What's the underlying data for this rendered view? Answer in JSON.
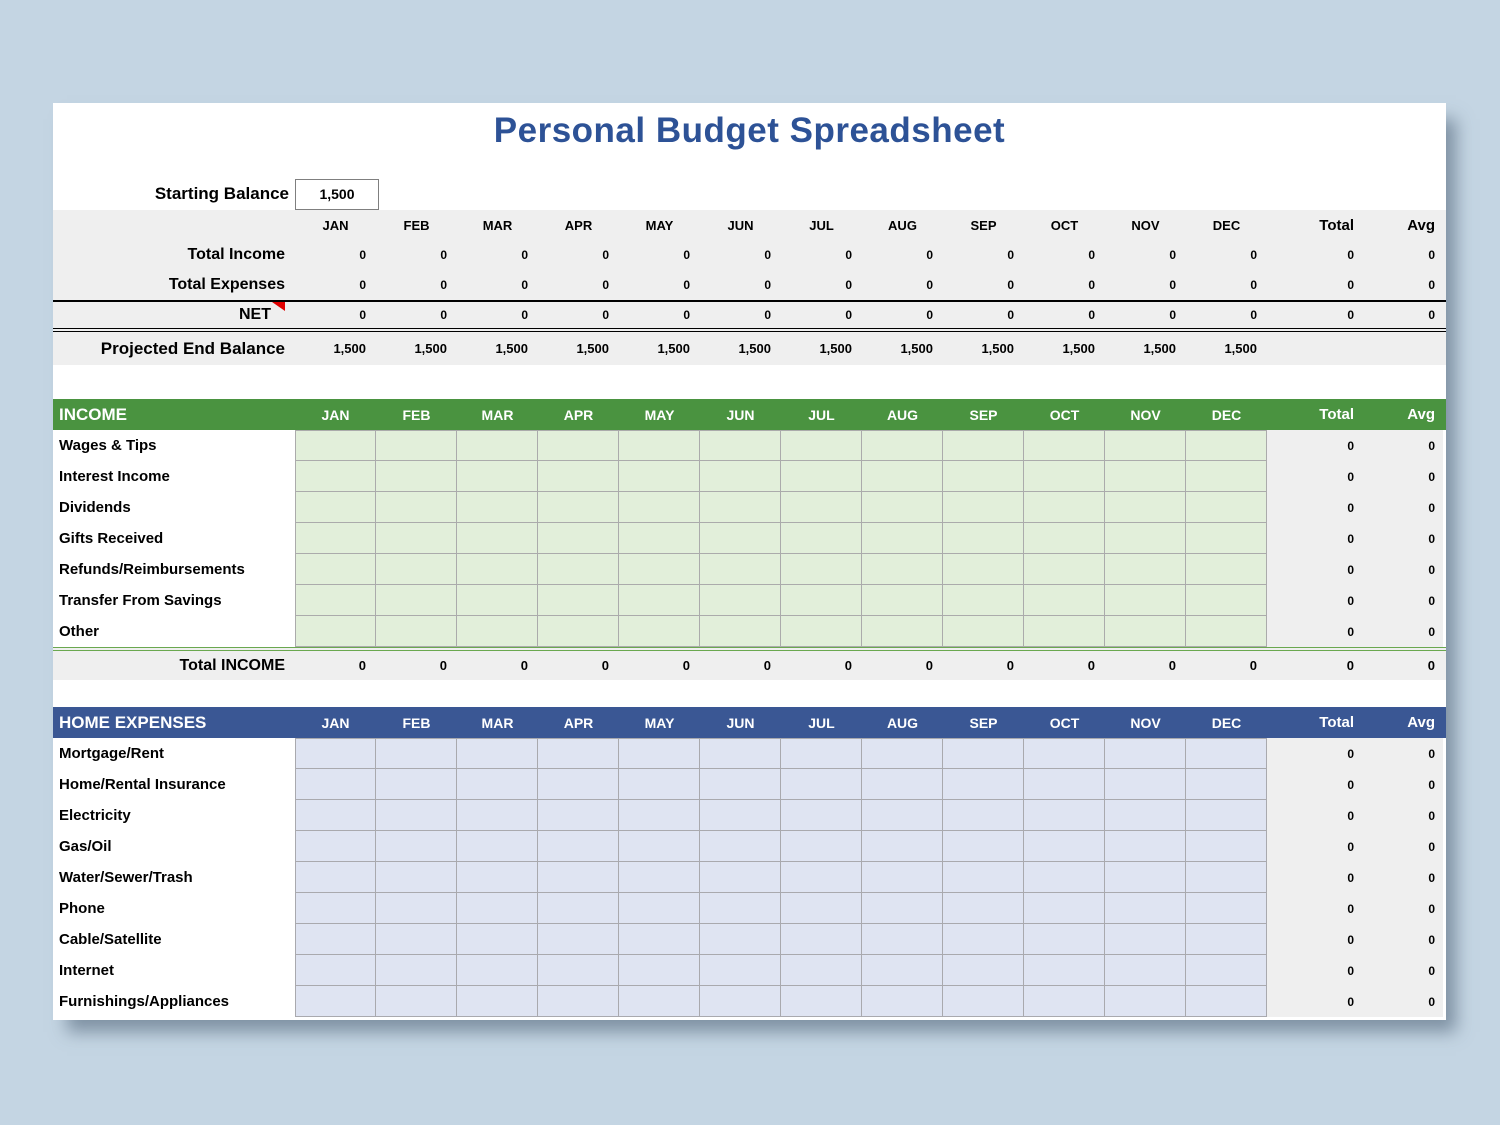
{
  "title": "Personal Budget Spreadsheet",
  "starting_balance": {
    "label": "Starting Balance",
    "value": "1,500"
  },
  "months": [
    "JAN",
    "FEB",
    "MAR",
    "APR",
    "MAY",
    "JUN",
    "JUL",
    "AUG",
    "SEP",
    "OCT",
    "NOV",
    "DEC"
  ],
  "total_label": "Total",
  "avg_label": "Avg",
  "summary": {
    "rows": [
      {
        "label": "Total Income",
        "values": [
          "0",
          "0",
          "0",
          "0",
          "0",
          "0",
          "0",
          "0",
          "0",
          "0",
          "0",
          "0"
        ],
        "total": "0",
        "avg": "0"
      },
      {
        "label": "Total Expenses",
        "values": [
          "0",
          "0",
          "0",
          "0",
          "0",
          "0",
          "0",
          "0",
          "0",
          "0",
          "0",
          "0"
        ],
        "total": "0",
        "avg": "0"
      },
      {
        "label": "NET",
        "values": [
          "0",
          "0",
          "0",
          "0",
          "0",
          "0",
          "0",
          "0",
          "0",
          "0",
          "0",
          "0"
        ],
        "total": "0",
        "avg": "0"
      }
    ],
    "projected": {
      "label": "Projected End Balance",
      "values": [
        "1,500",
        "1,500",
        "1,500",
        "1,500",
        "1,500",
        "1,500",
        "1,500",
        "1,500",
        "1,500",
        "1,500",
        "1,500",
        "1,500"
      ],
      "total": "",
      "avg": ""
    }
  },
  "income": {
    "header": "INCOME",
    "rows": [
      {
        "label": "Wages & Tips",
        "total": "0",
        "avg": "0"
      },
      {
        "label": "Interest Income",
        "total": "0",
        "avg": "0"
      },
      {
        "label": "Dividends",
        "total": "0",
        "avg": "0"
      },
      {
        "label": "Gifts Received",
        "total": "0",
        "avg": "0"
      },
      {
        "label": "Refunds/Reimbursements",
        "total": "0",
        "avg": "0"
      },
      {
        "label": "Transfer From Savings",
        "total": "0",
        "avg": "0"
      },
      {
        "label": "Other",
        "total": "0",
        "avg": "0"
      }
    ],
    "total_row": {
      "label": "Total INCOME",
      "values": [
        "0",
        "0",
        "0",
        "0",
        "0",
        "0",
        "0",
        "0",
        "0",
        "0",
        "0",
        "0"
      ],
      "total": "0",
      "avg": "0"
    }
  },
  "expenses": {
    "header": "HOME EXPENSES",
    "rows": [
      {
        "label": "Mortgage/Rent",
        "total": "0",
        "avg": "0"
      },
      {
        "label": "Home/Rental Insurance",
        "total": "0",
        "avg": "0"
      },
      {
        "label": "Electricity",
        "total": "0",
        "avg": "0"
      },
      {
        "label": "Gas/Oil",
        "total": "0",
        "avg": "0"
      },
      {
        "label": "Water/Sewer/Trash",
        "total": "0",
        "avg": "0"
      },
      {
        "label": "Phone",
        "total": "0",
        "avg": "0"
      },
      {
        "label": "Cable/Satellite",
        "total": "0",
        "avg": "0"
      },
      {
        "label": "Internet",
        "total": "0",
        "avg": "0"
      },
      {
        "label": "Furnishings/Appliances",
        "total": "0",
        "avg": "0"
      }
    ]
  },
  "colors": {
    "background": "#c4d5e3",
    "panel": "#ffffff",
    "title_text": "#2d5296",
    "summary_bg": "#efefef",
    "income_header_bg": "#4a9340",
    "income_cell_bg": "#e2efda",
    "income_cell_border": "#ababab",
    "grand_border": "#6aa84f",
    "expense_header_bg": "#3a5794",
    "expense_cell_bg": "#dfe4f2",
    "expense_cell_border": "#a9a9ae",
    "net_marker": "#e00000"
  }
}
